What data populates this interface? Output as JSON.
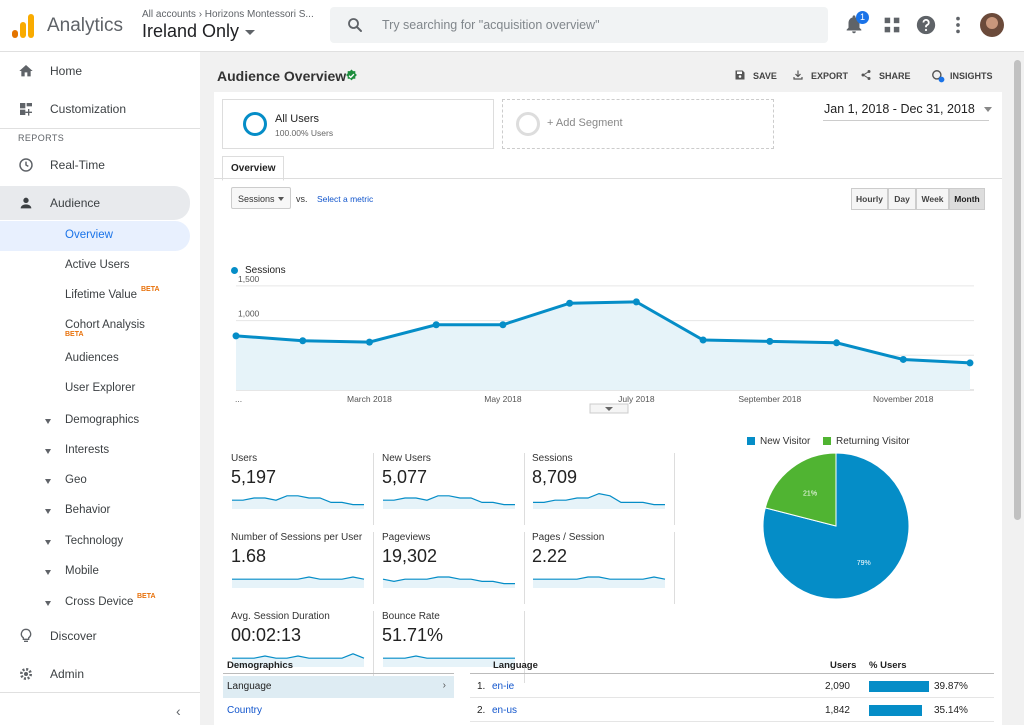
{
  "header": {
    "app_name": "Analytics",
    "breadcrumb": "All accounts › Horizons Montessori S...",
    "view_name": "Ireland Only",
    "search_placeholder": "Try searching for \"acquisition overview\"",
    "notification_count": "1"
  },
  "sidebar": {
    "home": "Home",
    "customization": "Customization",
    "reports_label": "REPORTS",
    "realtime": "Real-Time",
    "audience": "Audience",
    "audience_items": [
      {
        "label": "Overview"
      },
      {
        "label": "Active Users"
      },
      {
        "label": "Lifetime Value",
        "badge": "BETA"
      },
      {
        "label": "Cohort Analysis",
        "badge": "BETA"
      },
      {
        "label": "Audiences"
      },
      {
        "label": "User Explorer"
      },
      {
        "label": "Demographics"
      },
      {
        "label": "Interests"
      },
      {
        "label": "Geo"
      },
      {
        "label": "Behavior"
      },
      {
        "label": "Technology"
      },
      {
        "label": "Mobile"
      },
      {
        "label": "Cross Device",
        "badge": "BETA"
      }
    ],
    "discover": "Discover",
    "admin": "Admin"
  },
  "page": {
    "title": "Audience Overview",
    "actions": {
      "save": "SAVE",
      "export": "EXPORT",
      "share": "SHARE",
      "insights": "INSIGHTS"
    },
    "insights_badge": "2",
    "segment": {
      "name": "All Users",
      "pct": "100.00% Users"
    },
    "add_segment": "+ Add Segment",
    "date_range": "Jan 1, 2018 - Dec 31, 2018",
    "tab": "Overview",
    "metric_select": "Sessions",
    "vs": "vs.",
    "select_metric": "Select a metric",
    "granularity": [
      "Hourly",
      "Day",
      "Week",
      "Month"
    ],
    "active_granularity": "Month"
  },
  "chart_data": [
    {
      "type": "area",
      "series": [
        {
          "name": "Sessions",
          "values": [
            780,
            710,
            690,
            940,
            940,
            1250,
            1270,
            720,
            700,
            680,
            440,
            390
          ]
        }
      ],
      "x": [
        "Jan 2018",
        "Feb 2018",
        "Mar 2018",
        "Apr 2018",
        "May 2018",
        "Jun 2018",
        "Jul 2018",
        "Aug 2018",
        "Sep 2018",
        "Oct 2018",
        "Nov 2018",
        "Dec 2018"
      ],
      "x_tick_labels": [
        "...",
        "March 2018",
        "May 2018",
        "July 2018",
        "September 2018",
        "November 2018"
      ],
      "y_tick_labels": [
        "1,500",
        "1,000",
        "500"
      ],
      "ylim": [
        0,
        1700
      ],
      "grid": true,
      "color": "#058dc7"
    },
    {
      "type": "pie",
      "categories": [
        "New Visitor",
        "Returning Visitor"
      ],
      "values": [
        79,
        21
      ],
      "data_labels": [
        "79%",
        "21%"
      ],
      "colors": [
        "#058dc7",
        "#50b432"
      ],
      "legend": "top"
    }
  ],
  "stats": [
    {
      "label": "Users",
      "value": "5,197"
    },
    {
      "label": "New Users",
      "value": "5,077"
    },
    {
      "label": "Sessions",
      "value": "8,709"
    },
    {
      "label": "Number of Sessions per User",
      "value": "1.68"
    },
    {
      "label": "Pageviews",
      "value": "19,302"
    },
    {
      "label": "Pages / Session",
      "value": "2.22"
    },
    {
      "label": "Avg. Session Duration",
      "value": "00:02:13"
    },
    {
      "label": "Bounce Rate",
      "value": "51.71%"
    }
  ],
  "demographics": {
    "title": "Demographics",
    "rows": [
      "Language",
      "Country"
    ]
  },
  "language_table": {
    "headers": {
      "language": "Language",
      "users": "Users",
      "pct": "% Users"
    },
    "rows": [
      {
        "n": "1.",
        "lang": "en-ie",
        "users": "2,090",
        "pct": "39.87%",
        "share": 0.3987
      },
      {
        "n": "2.",
        "lang": "en-us",
        "users": "1,842",
        "pct": "35.14%",
        "share": 0.3514
      }
    ]
  },
  "colors": {
    "accent": "#058dc7",
    "returning": "#50b432",
    "logo": [
      "#f9ab00",
      "#e37400"
    ]
  }
}
